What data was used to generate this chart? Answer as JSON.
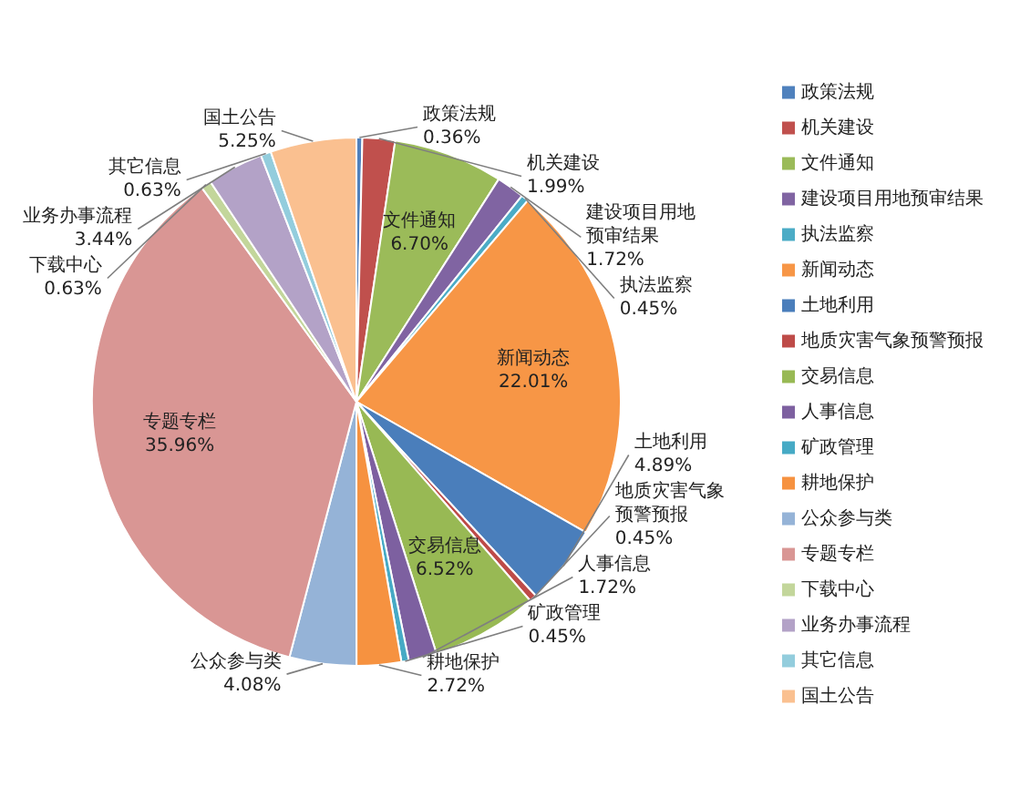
{
  "chart_data": {
    "type": "pie",
    "categories": [
      "政策法规",
      "机关建设",
      "文件通知",
      "建设项目用地预审结果",
      "执法监察",
      "新闻动态",
      "土地利用",
      "地质灾害气象预警预报",
      "交易信息",
      "人事信息",
      "矿政管理",
      "耕地保护",
      "公众参与类",
      "专题专栏",
      "下载中心",
      "业务办事流程",
      "其它信息",
      "国土公告"
    ],
    "values": [
      0.36,
      1.99,
      6.7,
      1.72,
      0.45,
      22.01,
      4.89,
      0.45,
      6.52,
      1.72,
      0.45,
      2.72,
      4.08,
      35.96,
      0.63,
      3.44,
      0.63,
      5.25
    ],
    "value_labels": [
      "0.36%",
      "1.99%",
      "6.70%",
      "1.72%",
      "0.45%",
      "22.01%",
      "4.89%",
      "0.45%",
      "6.52%",
      "1.72%",
      "0.45%",
      "2.72%",
      "4.08%",
      "35.96%",
      "0.63%",
      "3.44%",
      "0.63%",
      "5.25%"
    ],
    "colors": [
      "#4f81bd",
      "#c0504d",
      "#9bbb59",
      "#8064a2",
      "#4bacc6",
      "#f79646",
      "#4a7ebb",
      "#be4b48",
      "#98b954",
      "#7d60a0",
      "#46aac5",
      "#f69240",
      "#95b3d7",
      "#d99694",
      "#c3d69b",
      "#b3a2c7",
      "#93cddd",
      "#fac090"
    ],
    "legend": "right"
  }
}
